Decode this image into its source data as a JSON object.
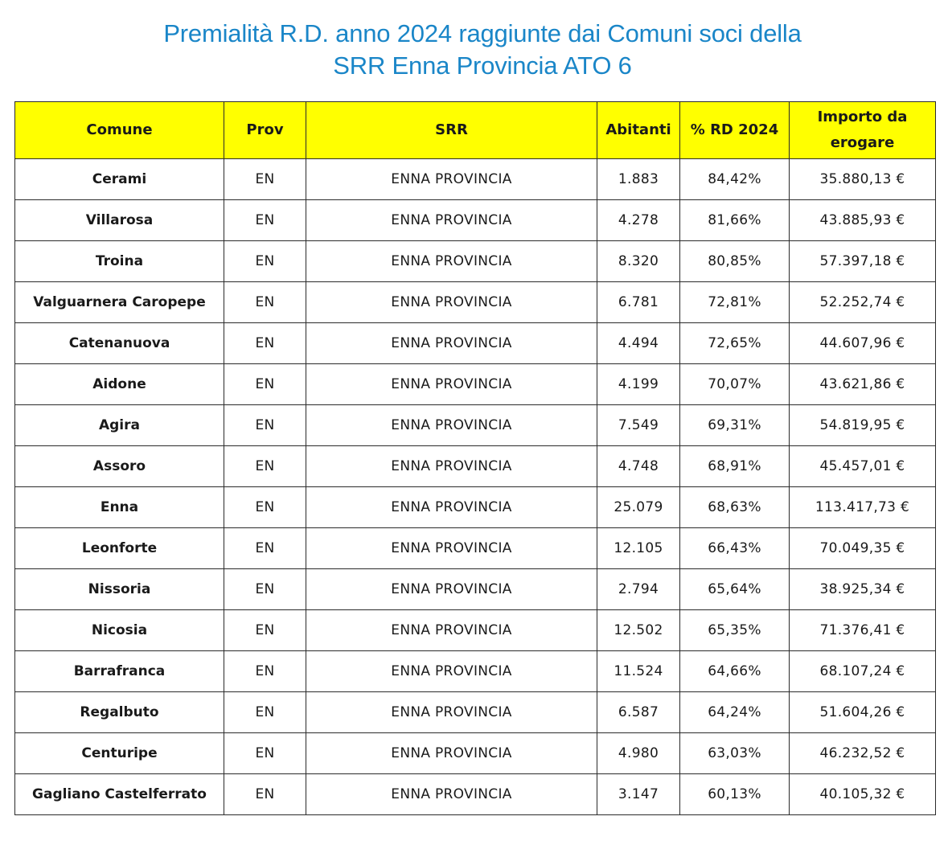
{
  "title": {
    "line1": "Premialità R.D. anno 2024 raggiunte dai Comuni soci della",
    "line2": "SRR Enna Provincia ATO 6"
  },
  "table": {
    "headers": [
      "Comune",
      "Prov",
      "SRR",
      "Abitanti",
      "% RD 2024",
      "Importo da erogare"
    ],
    "rows": [
      [
        "Cerami",
        "EN",
        "ENNA PROVINCIA",
        "1.883",
        "84,42%",
        "35.880,13 €"
      ],
      [
        "Villarosa",
        "EN",
        "ENNA PROVINCIA",
        "4.278",
        "81,66%",
        "43.885,93 €"
      ],
      [
        "Troina",
        "EN",
        "ENNA PROVINCIA",
        "8.320",
        "80,85%",
        "57.397,18 €"
      ],
      [
        "Valguarnera Caropepe",
        "EN",
        "ENNA PROVINCIA",
        "6.781",
        "72,81%",
        "52.252,74 €"
      ],
      [
        "Catenanuova",
        "EN",
        "ENNA PROVINCIA",
        "4.494",
        "72,65%",
        "44.607,96 €"
      ],
      [
        "Aidone",
        "EN",
        "ENNA PROVINCIA",
        "4.199",
        "70,07%",
        "43.621,86 €"
      ],
      [
        "Agira",
        "EN",
        "ENNA PROVINCIA",
        "7.549",
        "69,31%",
        "54.819,95 €"
      ],
      [
        "Assoro",
        "EN",
        "ENNA PROVINCIA",
        "4.748",
        "68,91%",
        "45.457,01 €"
      ],
      [
        "Enna",
        "EN",
        "ENNA PROVINCIA",
        "25.079",
        "68,63%",
        "113.417,73 €"
      ],
      [
        "Leonforte",
        "EN",
        "ENNA PROVINCIA",
        "12.105",
        "66,43%",
        "70.049,35 €"
      ],
      [
        "Nissoria",
        "EN",
        "ENNA PROVINCIA",
        "2.794",
        "65,64%",
        "38.925,34 €"
      ],
      [
        "Nicosia",
        "EN",
        "ENNA PROVINCIA",
        "12.502",
        "65,35%",
        "71.376,41 €"
      ],
      [
        "Barrafranca",
        "EN",
        "ENNA PROVINCIA",
        "11.524",
        "64,66%",
        "68.107,24 €"
      ],
      [
        "Regalbuto",
        "EN",
        "ENNA PROVINCIA",
        "6.587",
        "64,24%",
        "51.604,26 €"
      ],
      [
        "Centuripe",
        "EN",
        "ENNA PROVINCIA",
        "4.980",
        "63,03%",
        "46.232,52 €"
      ],
      [
        "Gagliano Castelferrato",
        "EN",
        "ENNA PROVINCIA",
        "3.147",
        "60,13%",
        "40.105,32 €"
      ]
    ]
  },
  "colors": {
    "title": "#1a86c8",
    "header_background": "#ffff00",
    "border": "#2b2b2b"
  }
}
